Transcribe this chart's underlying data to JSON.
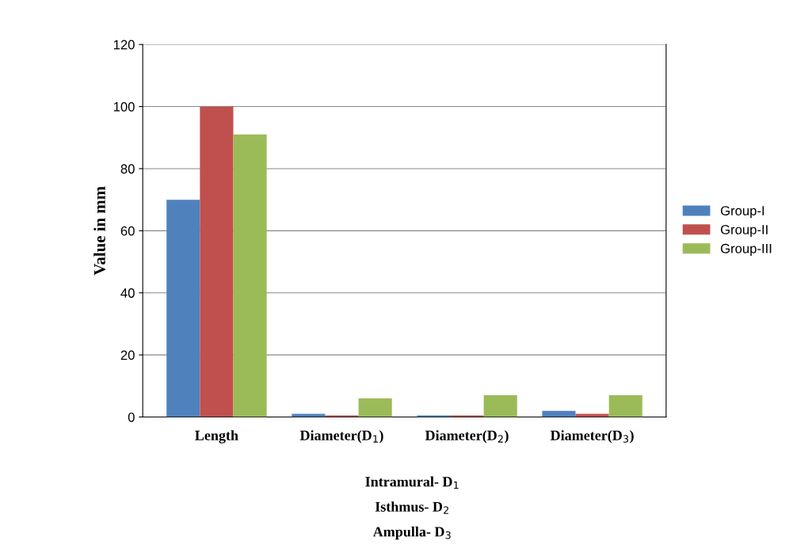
{
  "chart_data": {
    "type": "bar",
    "categories": [
      "Length",
      "Diameter(D$_{1}$)",
      "Diameter(D$_{2}$)",
      "Diameter(D$_{3}$)"
    ],
    "series": [
      {
        "name": "Group-I",
        "color": "#4f81bd",
        "values": [
          70,
          1,
          0.5,
          2
        ]
      },
      {
        "name": "Group-II",
        "color": "#c0504d",
        "values": [
          100,
          0.5,
          0.5,
          1
        ]
      },
      {
        "name": "Group-III",
        "color": "#9bbb59",
        "values": [
          91,
          6,
          7,
          7
        ]
      }
    ],
    "ylabel": "Value in mm",
    "ylim": [
      0,
      120
    ],
    "yticks": [
      0,
      20,
      40,
      60,
      80,
      100,
      120
    ],
    "grid": "y",
    "legend": "right",
    "annotations": [
      "Intramural- D$_{1}$",
      "Isthmus- D$_{2}$",
      "Ampulla- D$_{3}$"
    ]
  }
}
